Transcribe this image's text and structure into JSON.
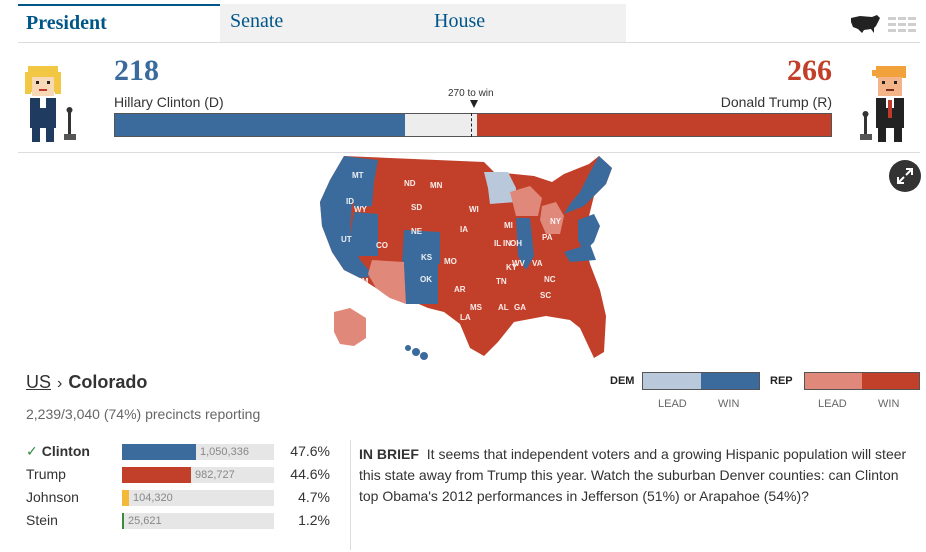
{
  "tabs": [
    {
      "label": "President",
      "active": true
    },
    {
      "label": "Senate",
      "active": false
    },
    {
      "label": "House",
      "active": false
    }
  ],
  "view_icons": [
    "us-map-icon",
    "list-view-icon"
  ],
  "header": {
    "dem": {
      "electoral_votes": "218",
      "name": "Hillary Clinton (D)"
    },
    "rep": {
      "electoral_votes": "266",
      "name": "Donald Trump (R)"
    },
    "win_label": "270 to win",
    "total_electoral_votes": 538,
    "win_threshold": 270
  },
  "map": {
    "state_labels": [
      "MT",
      "ND",
      "MN",
      "ID",
      "WY",
      "SD",
      "WI",
      "MI",
      "NY",
      "NE",
      "IA",
      "PA",
      "IL",
      "IN",
      "OH",
      "UT",
      "CO",
      "KS",
      "MO",
      "WV",
      "VA",
      "KY",
      "NC",
      "TN",
      "NM",
      "OK",
      "AR",
      "SC",
      "MS",
      "AL",
      "GA",
      "LA"
    ]
  },
  "expand_icon": "expand-icon",
  "breadcrumb": {
    "root": "US",
    "separator": "›",
    "current": "Colorado"
  },
  "precincts": "2,239/3,040 (74%) precincts reporting",
  "legend": {
    "dem": {
      "tag": "DEM",
      "lead": "LEAD",
      "win": "WIN"
    },
    "rep": {
      "tag": "REP",
      "lead": "LEAD",
      "win": "WIN"
    }
  },
  "colors": {
    "dem_win": "#3b6b9c",
    "dem_lead": "#b9c8db",
    "rep_win": "#c2402a",
    "rep_lead": "#e0887a",
    "johnson": "#f5b939",
    "stein": "#3c8a3c"
  },
  "results": [
    {
      "name": "Clinton",
      "winner": true,
      "votes": "1,050,336",
      "vote_count": 1050336,
      "pct": "47.6%"
    },
    {
      "name": "Trump",
      "winner": false,
      "votes": "982,727",
      "vote_count": 982727,
      "pct": "44.6%"
    },
    {
      "name": "Johnson",
      "winner": false,
      "votes": "104,320",
      "vote_count": 104320,
      "pct": "4.7%"
    },
    {
      "name": "Stein",
      "winner": false,
      "votes": "25,621",
      "vote_count": 25621,
      "pct": "1.2%"
    }
  ],
  "brief": {
    "heading": "IN BRIEF",
    "text": "It seems that independent voters and a growing Hispanic population will steer this state away from Trump this year. Watch the suburban Denver counties: can Clinton top Obama's 2012 performances in Jefferson (51%) or Arapahoe (54%)?"
  }
}
